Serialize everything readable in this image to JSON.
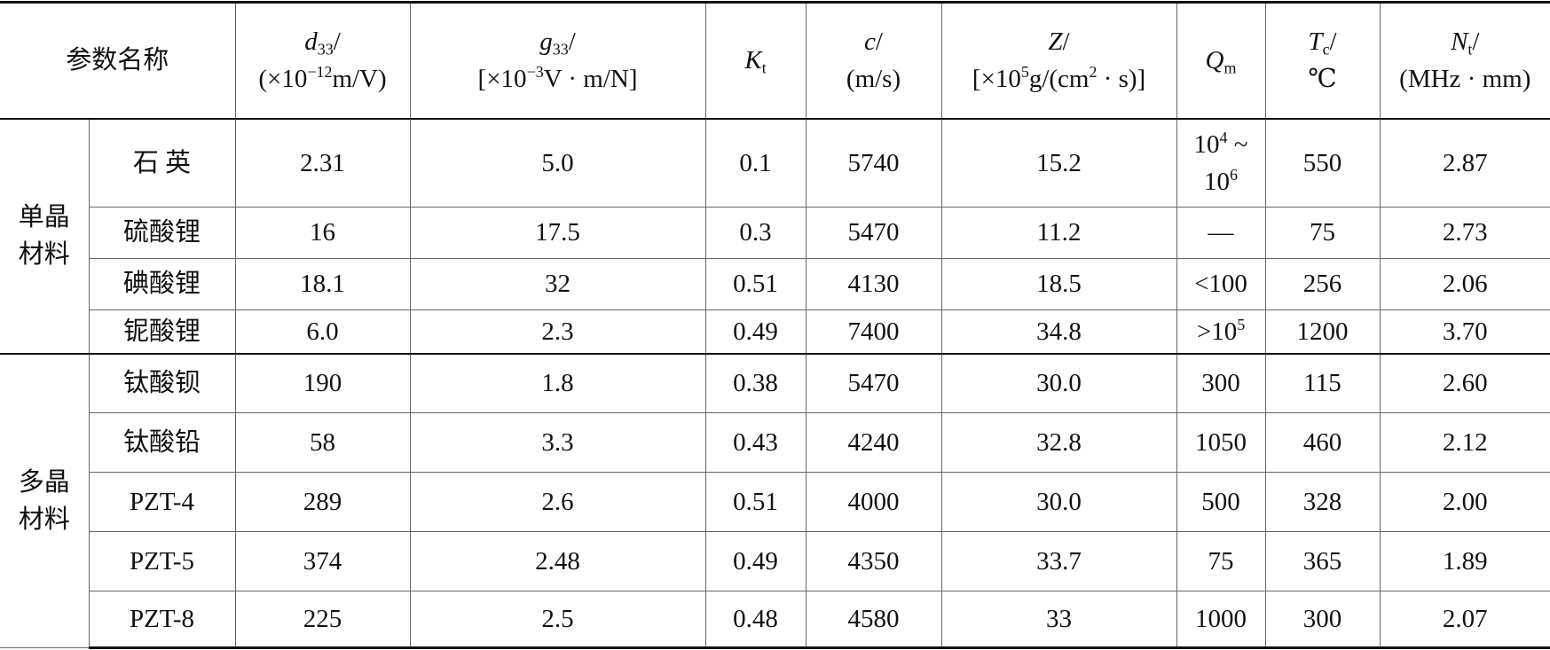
{
  "header": {
    "name": "参数名称",
    "columns": [
      [
        [
          {
            "text": "d",
            "style": "italic"
          },
          {
            "text": "33",
            "style": "sub"
          },
          {
            "text": "/"
          }
        ],
        [
          {
            "text": "(×10"
          },
          {
            "text": "−12",
            "style": "sup"
          },
          {
            "text": "m/V)"
          }
        ]
      ],
      [
        [
          {
            "text": "g",
            "style": "italic"
          },
          {
            "text": "33",
            "style": "sub"
          },
          {
            "text": "/"
          }
        ],
        [
          {
            "text": "[×10"
          },
          {
            "text": "−3",
            "style": "sup"
          },
          {
            "text": "V · m/N]"
          }
        ]
      ],
      [
        [
          {
            "text": "K",
            "style": "italic"
          },
          {
            "text": "t",
            "style": "sub"
          }
        ]
      ],
      [
        [
          {
            "text": "c",
            "style": "italic"
          },
          {
            "text": "/"
          }
        ],
        [
          {
            "text": "(m/s)"
          }
        ]
      ],
      [
        [
          {
            "text": "Z",
            "style": "italic"
          },
          {
            "text": "/"
          }
        ],
        [
          {
            "text": "[×10"
          },
          {
            "text": "5",
            "style": "sup"
          },
          {
            "text": "g/(cm"
          },
          {
            "text": "2",
            "style": "sup"
          },
          {
            "text": " · s)]"
          }
        ]
      ],
      [
        [
          {
            "text": "Q",
            "style": "italic"
          },
          {
            "text": "m",
            "style": "sub"
          }
        ]
      ],
      [
        [
          {
            "text": "T",
            "style": "italic"
          },
          {
            "text": "c",
            "style": "sub"
          },
          {
            "text": "/"
          }
        ],
        [
          {
            "text": "℃"
          }
        ]
      ],
      [
        [
          {
            "text": "N",
            "style": "italic"
          },
          {
            "text": "t",
            "style": "sub"
          },
          {
            "text": "/"
          }
        ],
        [
          {
            "text": "(MHz · mm)"
          }
        ]
      ]
    ]
  },
  "groups": [
    {
      "label": [
        "单晶",
        "材料"
      ],
      "rows": [
        {
          "name": "石 英",
          "values": [
            "2.31",
            "5.0",
            "0.1",
            "5740",
            "15.2",
            [
              [
                {
                  "text": "10"
                },
                {
                  "text": "4",
                  "style": "sup"
                },
                {
                  "text": " ~"
                }
              ],
              [
                {
                  "text": "10"
                },
                {
                  "text": "6",
                  "style": "sup"
                }
              ]
            ],
            "550",
            "2.87"
          ]
        },
        {
          "name": "硫酸锂",
          "values": [
            "16",
            "17.5",
            "0.3",
            "5470",
            "11.2",
            "—",
            "75",
            "2.73"
          ]
        },
        {
          "name": "碘酸锂",
          "values": [
            "18.1",
            "32",
            "0.51",
            "4130",
            "18.5",
            "<100",
            "256",
            "2.06"
          ]
        },
        {
          "name": "铌酸锂",
          "values": [
            "6.0",
            "2.3",
            "0.49",
            "7400",
            "34.8",
            [
              [
                {
                  "text": ">10"
                },
                {
                  "text": "5",
                  "style": "sup"
                }
              ]
            ],
            "1200",
            "3.70"
          ]
        }
      ]
    },
    {
      "label": [
        "多晶",
        "材料"
      ],
      "rows": [
        {
          "name": "钛酸钡",
          "values": [
            "190",
            "1.8",
            "0.38",
            "5470",
            "30.0",
            "300",
            "115",
            "2.60"
          ]
        },
        {
          "name": "钛酸铅",
          "values": [
            "58",
            "3.3",
            "0.43",
            "4240",
            "32.8",
            "1050",
            "460",
            "2.12"
          ]
        },
        {
          "name": "PZT-4",
          "values": [
            "289",
            "2.6",
            "0.51",
            "4000",
            "30.0",
            "500",
            "328",
            "2.00"
          ]
        },
        {
          "name": "PZT-5",
          "values": [
            "374",
            "2.48",
            "0.49",
            "4350",
            "33.7",
            "75",
            "365",
            "1.89"
          ]
        },
        {
          "name": "PZT-8",
          "values": [
            "225",
            "2.5",
            "0.48",
            "4580",
            "33",
            "1000",
            "300",
            "2.07"
          ]
        }
      ]
    }
  ]
}
